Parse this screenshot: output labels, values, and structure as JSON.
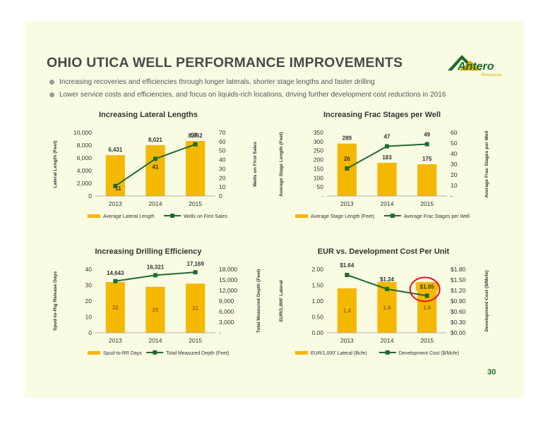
{
  "header": {
    "title": "OHIO UTICA WELL PERFORMANCE IMPROVEMENTS",
    "logo_text": "Antero",
    "logo_sub": "Resources",
    "page_number": "30"
  },
  "bullets": [
    "Increasing recoveries and efficiencies through longer laterals, shorter stage lengths and faster drilling",
    "Lower service costs and efficiencies, and focus on liquids-rich locations, driving further development cost reductions in 2016"
  ],
  "colors": {
    "bar": "#f5b800",
    "line": "#1e6b30",
    "highlight_circle": "#e0101a"
  },
  "chart_data": [
    {
      "type": "bar",
      "title": "Increasing Lateral Lengths",
      "categories": [
        "2013",
        "2014",
        "2015"
      ],
      "series": [
        {
          "name": "Average Lateral Length",
          "type": "bar",
          "axis": "left",
          "values": [
            6431,
            8021,
            8662
          ],
          "labels": [
            "6,431",
            "8,021",
            "8,662"
          ],
          "label_color": "#333333"
        },
        {
          "name": "Wells on First Sales",
          "type": "line",
          "axis": "right",
          "values": [
            11,
            41,
            57
          ],
          "labels": [
            "11",
            "41",
            "57"
          ]
        }
      ],
      "ylabel": "Lateral Length (Feet)",
      "y2label": "Wells on First Sales",
      "ylim": [
        0,
        10000
      ],
      "y2lim": [
        0,
        70
      ],
      "yticks": [
        "0",
        "2,000",
        "4,000",
        "6,000",
        "8,000",
        "10,000"
      ],
      "y2ticks": [
        "0",
        "10",
        "20",
        "30",
        "40",
        "50",
        "60",
        "70"
      ],
      "legend_position": "bottom"
    },
    {
      "type": "bar",
      "title": "Increasing Frac Stages per Well",
      "categories": [
        "2013",
        "2014",
        "2015"
      ],
      "series": [
        {
          "name": "Average Stage Length (Feet)",
          "type": "bar",
          "axis": "left",
          "values": [
            289,
            183,
            175
          ],
          "labels": [
            "289",
            "183",
            "175"
          ],
          "label_color": "#333333"
        },
        {
          "name": "Average Frac Stages per Well",
          "type": "line",
          "axis": "right",
          "values": [
            26,
            47,
            49
          ],
          "labels": [
            "26",
            "47",
            "49"
          ]
        }
      ],
      "ylabel": "Average Stage Length (Feet)",
      "y2label": "Average Frac Stages per Well",
      "ylim": [
        0,
        350
      ],
      "y2lim": [
        0,
        60
      ],
      "yticks": [
        "-",
        "50",
        "100",
        "150",
        "200",
        "250",
        "300",
        "350"
      ],
      "y2ticks": [
        "-",
        "10",
        "20",
        "30",
        "40",
        "50",
        "60"
      ],
      "legend_position": "bottom"
    },
    {
      "type": "bar",
      "title": "Increasing Drilling Efficiency",
      "categories": [
        "2013",
        "2014",
        "2015"
      ],
      "series": [
        {
          "name": "Spud-to-RR Days",
          "type": "bar",
          "axis": "left",
          "values": [
            32,
            29,
            31
          ],
          "labels": [
            "32",
            "29",
            "31"
          ],
          "label_color": "#b5651d"
        },
        {
          "name": "Total Measured Depth (Feet)",
          "type": "line",
          "axis": "right",
          "values": [
            14643,
            16321,
            17169
          ],
          "labels": [
            "14,643",
            "16,321",
            "17,169"
          ]
        }
      ],
      "ylabel": "Spud-to-Rig Release Days",
      "y2label": "Total Measured Depth (Feet)",
      "ylim": [
        0,
        40
      ],
      "y2lim": [
        0,
        18000
      ],
      "yticks": [
        "0",
        "10",
        "20",
        "30",
        "40"
      ],
      "y2ticks": [
        "-",
        "3,000",
        "6,000",
        "9,000",
        "12,000",
        "15,000",
        "18,000"
      ],
      "legend_position": "bottom"
    },
    {
      "type": "bar",
      "title": "EUR vs. Development Cost Per Unit",
      "categories": [
        "2013",
        "2014",
        "2015"
      ],
      "series": [
        {
          "name": "EUR/1,000' Lateral (Bcfe)",
          "type": "bar",
          "axis": "left",
          "values": [
            1.4,
            1.6,
            1.6
          ],
          "labels": [
            "1.4",
            "1.6",
            "1.6"
          ],
          "label_color": "#9a6a10"
        },
        {
          "name": "Development Cost ($/Mcfe)",
          "type": "line",
          "axis": "right",
          "values": [
            1.64,
            1.24,
            1.05
          ],
          "labels": [
            "$1.64",
            "$1.24",
            "$1.05"
          ],
          "highlight_index": 2
        }
      ],
      "ylabel": "EUR/1,000' Lateral",
      "y2label": "Development Cost ($/Mcfe)",
      "ylim": [
        0,
        2.0
      ],
      "y2lim": [
        0,
        1.8
      ],
      "yticks": [
        "0.00",
        "0.50",
        "1.00",
        "1.50",
        "2.00"
      ],
      "y2ticks": [
        "$0.00",
        "$0.30",
        "$0.60",
        "$0.90",
        "$1.20",
        "$1.50",
        "$1.80"
      ],
      "legend_position": "bottom"
    }
  ]
}
